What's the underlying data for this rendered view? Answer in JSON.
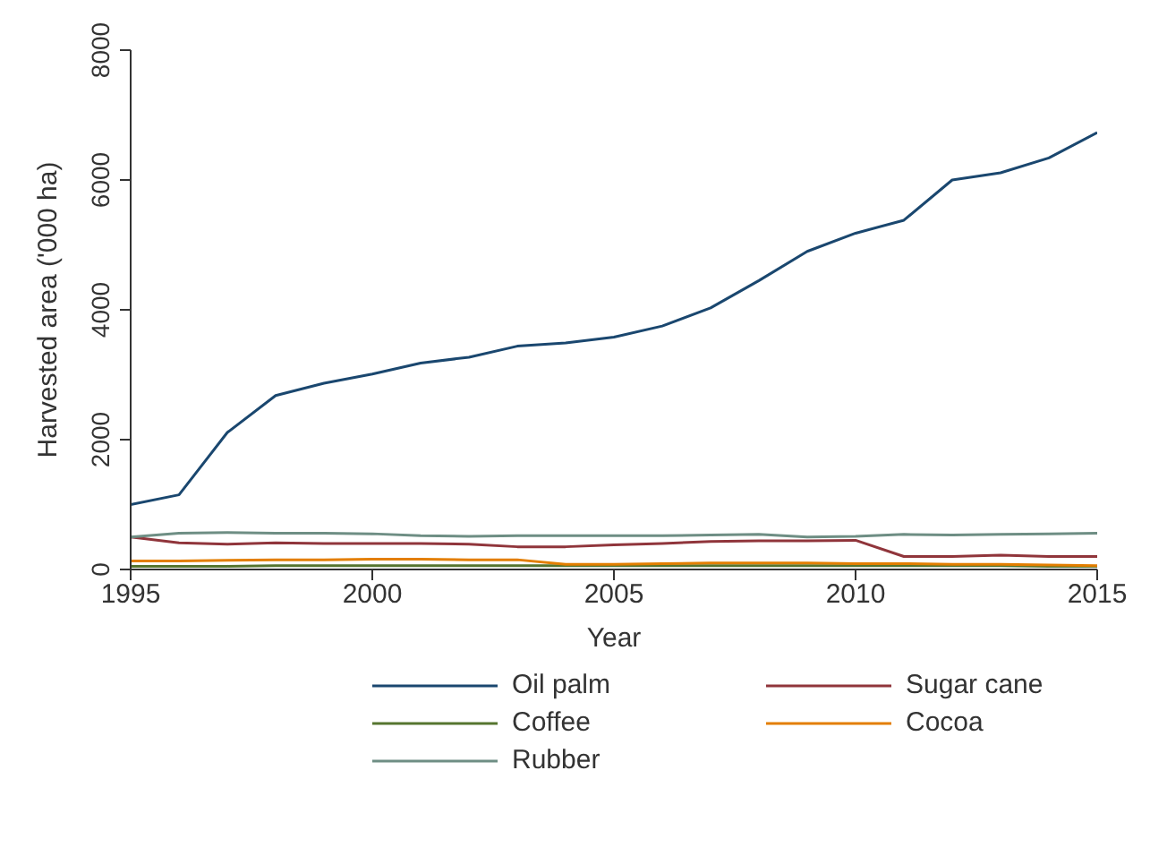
{
  "chart_data": {
    "type": "line",
    "xlabel": "Year",
    "ylabel": "Harvested area ('000 ha)",
    "x": [
      1995,
      1996,
      1997,
      1998,
      1999,
      2000,
      2001,
      2002,
      2003,
      2004,
      2005,
      2006,
      2007,
      2008,
      2009,
      2010,
      2011,
      2012,
      2013,
      2014,
      2015
    ],
    "xlim": [
      1995,
      2015
    ],
    "xticks": [
      1995,
      2000,
      2005,
      2010,
      2015
    ],
    "ylim": [
      0,
      8000
    ],
    "yticks": [
      0,
      2000,
      4000,
      6000,
      8000
    ],
    "grid": false,
    "legend": "bottom",
    "marker": "none",
    "line_style": "solid",
    "series": [
      {
        "name": "Oil palm",
        "color": "#1a476f",
        "values": [
          1000,
          1150,
          2110,
          2680,
          2870,
          3010,
          3180,
          3270,
          3440,
          3490,
          3580,
          3750,
          4030,
          4450,
          4900,
          5180,
          5380,
          6000,
          6110,
          6340,
          6730
        ]
      },
      {
        "name": "Sugar cane",
        "color": "#90353b",
        "values": [
          500,
          410,
          390,
          410,
          400,
          400,
          400,
          390,
          350,
          350,
          380,
          400,
          430,
          440,
          440,
          450,
          200,
          200,
          220,
          200,
          200
        ]
      },
      {
        "name": "Coffee",
        "color": "#55752f",
        "values": [
          50,
          50,
          50,
          60,
          60,
          60,
          60,
          60,
          60,
          60,
          60,
          60,
          60,
          60,
          60,
          60,
          60,
          60,
          60,
          50,
          50
        ]
      },
      {
        "name": "Cocoa",
        "color": "#e37e00",
        "values": [
          130,
          130,
          140,
          150,
          150,
          160,
          160,
          150,
          150,
          80,
          80,
          90,
          100,
          100,
          100,
          90,
          90,
          80,
          80,
          70,
          60
        ]
      },
      {
        "name": "Rubber",
        "color": "#6e8e84",
        "values": [
          500,
          560,
          570,
          560,
          560,
          550,
          520,
          510,
          520,
          520,
          520,
          520,
          530,
          540,
          500,
          510,
          540,
          530,
          540,
          550,
          560
        ]
      }
    ]
  }
}
